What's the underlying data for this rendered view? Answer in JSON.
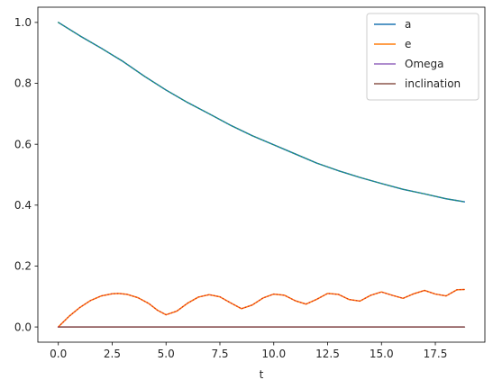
{
  "chart_data": {
    "type": "line",
    "xlabel": "t",
    "ylabel": "",
    "xlim": [
      -0.95,
      19.8
    ],
    "ylim": [
      -0.05,
      1.05
    ],
    "xticks": [
      0.0,
      2.5,
      5.0,
      7.5,
      10.0,
      12.5,
      15.0,
      17.5
    ],
    "xtick_labels": [
      "0.0",
      "2.5",
      "5.0",
      "7.5",
      "10.0",
      "12.5",
      "15.0",
      "17.5"
    ],
    "yticks": [
      0.0,
      0.2,
      0.4,
      0.6,
      0.8,
      1.0
    ],
    "ytick_labels": [
      "0.0",
      "0.2",
      "0.4",
      "0.6",
      "0.8",
      "1.0"
    ],
    "grid": false,
    "legend_position": "top-right",
    "series": [
      {
        "name": "a",
        "color": "#1f77b4",
        "x": [
          0.0,
          1.0,
          2.0,
          3.0,
          4.0,
          5.0,
          6.0,
          7.0,
          8.0,
          9.0,
          10.0,
          11.0,
          12.0,
          13.0,
          14.0,
          15.0,
          16.0,
          17.0,
          18.0,
          18.85
        ],
        "y": [
          1.0,
          0.956,
          0.915,
          0.872,
          0.823,
          0.778,
          0.737,
          0.7,
          0.662,
          0.628,
          0.598,
          0.568,
          0.538,
          0.513,
          0.491,
          0.471,
          0.452,
          0.437,
          0.421,
          0.411
        ]
      },
      {
        "name": "e",
        "color": "#ff7f0e",
        "x": [
          0.0,
          0.5,
          1.0,
          1.5,
          2.0,
          2.5,
          2.8,
          3.2,
          3.7,
          4.2,
          4.6,
          5.0,
          5.5,
          6.0,
          6.5,
          7.0,
          7.5,
          8.0,
          8.5,
          9.0,
          9.5,
          10.0,
          10.5,
          11.0,
          11.5,
          12.0,
          12.5,
          13.0,
          13.5,
          14.0,
          14.5,
          15.0,
          15.5,
          16.0,
          16.5,
          17.0,
          17.5,
          18.0,
          18.5,
          18.85
        ],
        "y": [
          0.0,
          0.035,
          0.064,
          0.087,
          0.102,
          0.109,
          0.11,
          0.107,
          0.096,
          0.077,
          0.055,
          0.04,
          0.052,
          0.078,
          0.098,
          0.106,
          0.099,
          0.079,
          0.06,
          0.072,
          0.095,
          0.108,
          0.104,
          0.086,
          0.075,
          0.091,
          0.11,
          0.107,
          0.09,
          0.085,
          0.104,
          0.115,
          0.104,
          0.094,
          0.109,
          0.12,
          0.108,
          0.102,
          0.122,
          0.123
        ]
      },
      {
        "name": "Omega",
        "color": "#9467bd",
        "x": [
          0.0,
          18.85
        ],
        "y": [
          0.0,
          0.0
        ]
      },
      {
        "name": "inclination",
        "color": "#8c564b",
        "x": [
          0.0,
          18.85
        ],
        "y": [
          0.0,
          0.0
        ]
      }
    ]
  }
}
